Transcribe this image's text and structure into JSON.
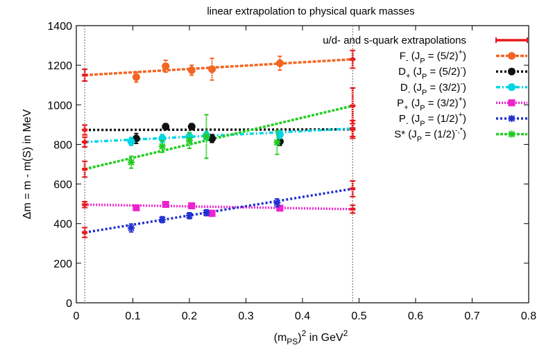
{
  "chart_data": {
    "type": "scatter",
    "title": "linear extrapolation to physical quark masses",
    "xlabel": "(m_PS)^2 in GeV^2",
    "ylabel": "Δm = m - m(S) in MeV",
    "xlim": [
      0,
      0.8
    ],
    "ylim": [
      0,
      1400
    ],
    "x_ticks": [
      "0",
      "0.1",
      "0.2",
      "0.3",
      "0.4",
      "0.5",
      "0.6",
      "0.7",
      "0.8"
    ],
    "y_ticks": [
      "0",
      "200",
      "400",
      "600",
      "800",
      "1000",
      "1200",
      "1400"
    ],
    "x_tick_values": [
      0,
      0.1,
      0.2,
      0.3,
      0.4,
      0.5,
      0.6,
      0.7,
      0.8
    ],
    "y_tick_values": [
      0,
      200,
      400,
      600,
      800,
      1000,
      1200,
      1400
    ],
    "vertical_reference_lines": [
      0.0149,
      0.4887
    ],
    "grid": false,
    "legend_position": "top-right",
    "extrapolation_series": {
      "name": "u/d- and s-quark extrapolations",
      "color": "#e8191c",
      "points": [
        {
          "x": 0.0149,
          "y": 1150,
          "err": 30
        },
        {
          "x": 0.4887,
          "y": 1230,
          "err": 45
        },
        {
          "x": 0.0149,
          "y": 873,
          "err": 25
        },
        {
          "x": 0.4887,
          "y": 876,
          "err": 45
        },
        {
          "x": 0.0149,
          "y": 812,
          "err": 25
        },
        {
          "x": 0.4887,
          "y": 880,
          "err": 40
        },
        {
          "x": 0.0149,
          "y": 496,
          "err": 15
        },
        {
          "x": 0.4887,
          "y": 473,
          "err": 20
        },
        {
          "x": 0.0149,
          "y": 355,
          "err": 25
        },
        {
          "x": 0.4887,
          "y": 576,
          "err": 40
        },
        {
          "x": 0.0149,
          "y": 675,
          "err": 40
        },
        {
          "x": 0.4887,
          "y": 995,
          "err": 90
        }
      ]
    },
    "series": [
      {
        "label_main": "F",
        "label_sub": "-",
        "label_state": " (J",
        "label_state_sup": "P",
        "label_state_tail": " = (5/2)",
        "label_parity_sup": "+",
        "label_close": ")",
        "color": "#f26522",
        "marker": "circle",
        "dash": "5 2",
        "fit": [
          [
            0.0149,
            1150
          ],
          [
            0.4887,
            1230
          ]
        ],
        "points": [
          {
            "x": 0.106,
            "y": 1140,
            "err": 25
          },
          {
            "x": 0.158,
            "y": 1195,
            "err": 30
          },
          {
            "x": 0.204,
            "y": 1175,
            "err": 25
          },
          {
            "x": 0.24,
            "y": 1180,
            "err": 55
          },
          {
            "x": 0.36,
            "y": 1210,
            "err": 35
          }
        ]
      },
      {
        "label_main": "D",
        "label_sub": "+",
        "label_state": " (J",
        "label_state_sup": "P",
        "label_state_tail": " = (5/2)",
        "label_parity_sup": "-",
        "label_close": ")",
        "color": "#111111",
        "marker": "circle",
        "dash": "3 3",
        "fit": [
          [
            0.0149,
            873
          ],
          [
            0.4887,
            876
          ]
        ],
        "points": [
          {
            "x": 0.106,
            "y": 830,
            "err": 25
          },
          {
            "x": 0.158,
            "y": 890,
            "err": 15
          },
          {
            "x": 0.204,
            "y": 890,
            "err": 15
          },
          {
            "x": 0.24,
            "y": 830,
            "err": 20
          },
          {
            "x": 0.36,
            "y": 815,
            "err": 20
          }
        ]
      },
      {
        "label_main": "D",
        "label_sub": "-",
        "label_state": " (J",
        "label_state_sup": "P",
        "label_state_tail": " = (3/2)",
        "label_parity_sup": "-",
        "label_close": ")",
        "color": "#00d5e5",
        "marker": "circle",
        "dash": "6 3 2 3",
        "fit": [
          [
            0.0149,
            812
          ],
          [
            0.4887,
            880
          ]
        ],
        "points": [
          {
            "x": 0.097,
            "y": 815,
            "err": 20
          },
          {
            "x": 0.152,
            "y": 830,
            "err": 20
          },
          {
            "x": 0.2,
            "y": 840,
            "err": 20
          },
          {
            "x": 0.23,
            "y": 845,
            "err": 20
          },
          {
            "x": 0.36,
            "y": 850,
            "err": 20
          }
        ]
      },
      {
        "label_main": "P",
        "label_sub": "+",
        "label_state": " (J",
        "label_state_sup": "P",
        "label_state_tail": " = (3/2)",
        "label_parity_sup": "+",
        "label_close": ")",
        "color": "#ee22d0",
        "marker": "square",
        "dash": "2 2",
        "fit": [
          [
            0.0149,
            496
          ],
          [
            0.4887,
            473
          ]
        ],
        "points": [
          {
            "x": 0.106,
            "y": 480,
            "err": 10
          },
          {
            "x": 0.158,
            "y": 497,
            "err": 10
          },
          {
            "x": 0.204,
            "y": 490,
            "err": 10
          },
          {
            "x": 0.24,
            "y": 452,
            "err": 15
          },
          {
            "x": 0.36,
            "y": 478,
            "err": 10
          }
        ]
      },
      {
        "label_main": "P",
        "label_sub": "-",
        "label_state": " (J",
        "label_state_sup": "P",
        "label_state_tail": " = (1/2)",
        "label_parity_sup": "+",
        "label_close": ")",
        "color": "#1f2fd0",
        "marker": "star",
        "dash": "3 3",
        "fit": [
          [
            0.0149,
            355
          ],
          [
            0.4887,
            576
          ]
        ],
        "points": [
          {
            "x": 0.097,
            "y": 378,
            "err": 20
          },
          {
            "x": 0.152,
            "y": 420,
            "err": 15
          },
          {
            "x": 0.2,
            "y": 440,
            "err": 15
          },
          {
            "x": 0.23,
            "y": 455,
            "err": 15
          },
          {
            "x": 0.355,
            "y": 505,
            "err": 20
          }
        ]
      },
      {
        "label_main": "S*",
        "label_sub": "",
        "label_state": " (J",
        "label_state_sup": "P",
        "label_state_tail": " = (1/2)",
        "label_parity_sup": "-,*",
        "label_close": ")",
        "color": "#22cc22",
        "marker": "star",
        "dash": "4 2",
        "fit": [
          [
            0.0149,
            675
          ],
          [
            0.4887,
            995
          ]
        ],
        "points": [
          {
            "x": 0.097,
            "y": 710,
            "err": 30
          },
          {
            "x": 0.152,
            "y": 790,
            "err": 30
          },
          {
            "x": 0.2,
            "y": 820,
            "err": 40
          },
          {
            "x": 0.23,
            "y": 840,
            "err": 110
          },
          {
            "x": 0.355,
            "y": 810,
            "err": 60
          }
        ]
      }
    ]
  }
}
